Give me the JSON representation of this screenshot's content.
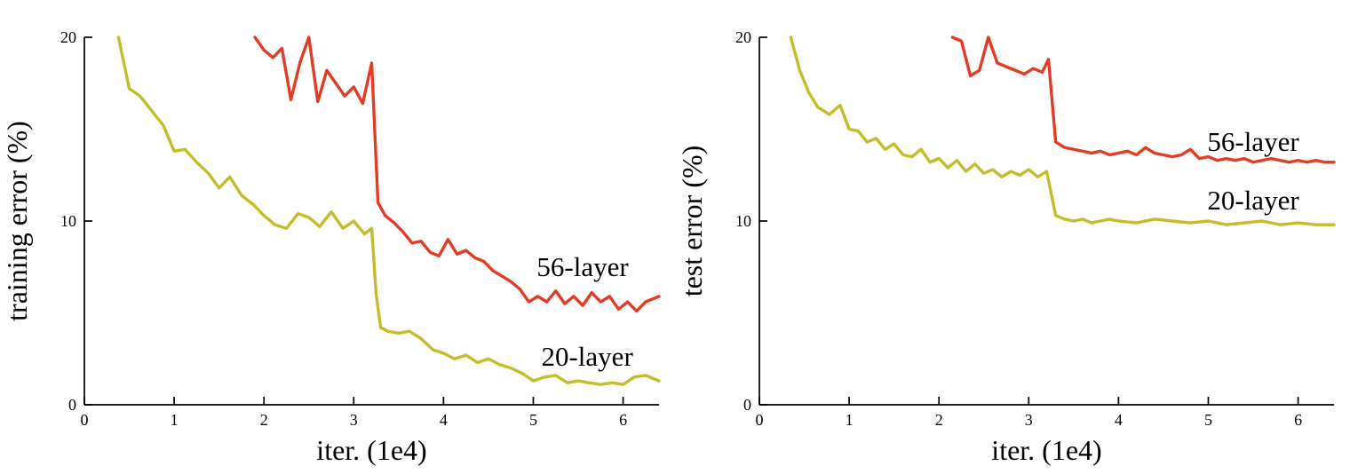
{
  "chart_data": [
    {
      "id": "training-error",
      "type": "line",
      "title": "",
      "xlabel": "iter. (1e4)",
      "ylabel": "training error (%)",
      "xlim": [
        0,
        6.4
      ],
      "ylim": [
        0,
        20
      ],
      "xticks": [
        0,
        1,
        2,
        3,
        4,
        5,
        6
      ],
      "yticks": [
        0,
        10,
        20
      ],
      "grid": false,
      "legend_position": "inline-annotations",
      "series": [
        {
          "name": "20-layer",
          "color": "#c3bd2b",
          "x": [
            0.38,
            0.5,
            0.62,
            0.75,
            0.88,
            1.0,
            1.12,
            1.25,
            1.38,
            1.5,
            1.62,
            1.75,
            1.88,
            2.0,
            2.12,
            2.25,
            2.38,
            2.5,
            2.62,
            2.75,
            2.88,
            3.0,
            3.12,
            3.2,
            3.25,
            3.3,
            3.38,
            3.5,
            3.62,
            3.75,
            3.88,
            4.0,
            4.12,
            4.25,
            4.38,
            4.5,
            4.62,
            4.75,
            4.88,
            5.0,
            5.12,
            5.25,
            5.38,
            5.5,
            5.62,
            5.75,
            5.88,
            6.0,
            6.12,
            6.25,
            6.4
          ],
          "y": [
            20,
            17.2,
            16.8,
            16.0,
            15.2,
            13.8,
            13.9,
            13.2,
            12.6,
            11.8,
            12.4,
            11.4,
            10.9,
            10.3,
            9.8,
            9.6,
            10.4,
            10.2,
            9.7,
            10.5,
            9.6,
            10.0,
            9.3,
            9.6,
            6.0,
            4.2,
            4.0,
            3.9,
            4.0,
            3.6,
            3.0,
            2.8,
            2.5,
            2.7,
            2.3,
            2.5,
            2.2,
            2.0,
            1.7,
            1.3,
            1.5,
            1.6,
            1.2,
            1.3,
            1.2,
            1.1,
            1.2,
            1.1,
            1.5,
            1.6,
            1.3
          ]
        },
        {
          "name": "56-layer",
          "color": "#e33b25",
          "x": [
            1.9,
            2.0,
            2.1,
            2.2,
            2.3,
            2.4,
            2.5,
            2.6,
            2.7,
            2.8,
            2.9,
            3.0,
            3.1,
            3.2,
            3.27,
            3.35,
            3.45,
            3.55,
            3.65,
            3.75,
            3.85,
            3.95,
            4.05,
            4.15,
            4.25,
            4.35,
            4.45,
            4.55,
            4.65,
            4.75,
            4.85,
            4.95,
            5.05,
            5.15,
            5.25,
            5.35,
            5.45,
            5.55,
            5.65,
            5.75,
            5.85,
            5.95,
            6.05,
            6.15,
            6.25,
            6.4
          ],
          "y": [
            20,
            19.3,
            18.9,
            19.4,
            16.6,
            18.6,
            20.0,
            16.5,
            18.2,
            17.5,
            16.8,
            17.3,
            16.4,
            18.6,
            11.0,
            10.3,
            9.9,
            9.4,
            8.8,
            8.9,
            8.3,
            8.1,
            9.0,
            8.2,
            8.4,
            8.0,
            7.8,
            7.3,
            7.0,
            6.7,
            6.3,
            5.6,
            5.9,
            5.6,
            6.2,
            5.5,
            5.9,
            5.4,
            6.1,
            5.6,
            5.9,
            5.2,
            5.6,
            5.1,
            5.6,
            5.9
          ]
        }
      ],
      "annotations": [
        {
          "text": "56-layer",
          "x": 5.55,
          "y": 7.5
        },
        {
          "text": "20-layer",
          "x": 5.6,
          "y": 2.6
        }
      ]
    },
    {
      "id": "test-error",
      "type": "line",
      "title": "",
      "xlabel": "iter. (1e4)",
      "ylabel": "test error (%)",
      "xlim": [
        0,
        6.4
      ],
      "ylim": [
        0,
        20
      ],
      "xticks": [
        0,
        1,
        2,
        3,
        4,
        5,
        6
      ],
      "yticks": [
        0,
        10,
        20
      ],
      "grid": false,
      "legend_position": "inline-annotations",
      "series": [
        {
          "name": "20-layer",
          "color": "#c3bd2b",
          "x": [
            0.35,
            0.45,
            0.55,
            0.65,
            0.78,
            0.9,
            1.0,
            1.1,
            1.2,
            1.3,
            1.4,
            1.5,
            1.6,
            1.7,
            1.8,
            1.9,
            2.0,
            2.1,
            2.2,
            2.3,
            2.4,
            2.5,
            2.6,
            2.7,
            2.8,
            2.9,
            3.0,
            3.1,
            3.2,
            3.3,
            3.4,
            3.5,
            3.6,
            3.7,
            3.8,
            3.9,
            4.0,
            4.2,
            4.4,
            4.6,
            4.8,
            5.0,
            5.2,
            5.4,
            5.6,
            5.8,
            6.0,
            6.2,
            6.4
          ],
          "y": [
            20,
            18.2,
            17.0,
            16.2,
            15.8,
            16.3,
            15.0,
            14.9,
            14.3,
            14.5,
            13.9,
            14.2,
            13.6,
            13.5,
            13.9,
            13.2,
            13.4,
            12.9,
            13.3,
            12.7,
            13.1,
            12.6,
            12.8,
            12.4,
            12.7,
            12.5,
            12.8,
            12.4,
            12.7,
            10.3,
            10.1,
            10.0,
            10.1,
            9.9,
            10.0,
            10.1,
            10.0,
            9.9,
            10.1,
            10.0,
            9.9,
            10.0,
            9.8,
            9.9,
            10.0,
            9.8,
            9.9,
            9.8,
            9.8
          ]
        },
        {
          "name": "56-layer",
          "color": "#e33b25",
          "x": [
            2.15,
            2.25,
            2.35,
            2.45,
            2.55,
            2.65,
            2.75,
            2.85,
            2.95,
            3.05,
            3.15,
            3.22,
            3.3,
            3.4,
            3.5,
            3.6,
            3.7,
            3.8,
            3.9,
            4.0,
            4.1,
            4.2,
            4.3,
            4.4,
            4.5,
            4.6,
            4.7,
            4.8,
            4.9,
            5.0,
            5.1,
            5.2,
            5.3,
            5.4,
            5.5,
            5.6,
            5.7,
            5.8,
            5.9,
            6.0,
            6.1,
            6.2,
            6.3,
            6.4
          ],
          "y": [
            20,
            19.8,
            17.9,
            18.2,
            20.0,
            18.6,
            18.4,
            18.2,
            18.0,
            18.3,
            18.1,
            18.8,
            14.3,
            14.0,
            13.9,
            13.8,
            13.7,
            13.8,
            13.6,
            13.7,
            13.8,
            13.6,
            14.0,
            13.7,
            13.6,
            13.5,
            13.6,
            13.9,
            13.4,
            13.5,
            13.3,
            13.4,
            13.3,
            13.4,
            13.2,
            13.3,
            13.4,
            13.3,
            13.2,
            13.3,
            13.2,
            13.3,
            13.2,
            13.2
          ]
        }
      ],
      "annotations": [
        {
          "text": "56-layer",
          "x": 5.5,
          "y": 14.3
        },
        {
          "text": "20-layer",
          "x": 5.5,
          "y": 11.1
        }
      ]
    }
  ]
}
